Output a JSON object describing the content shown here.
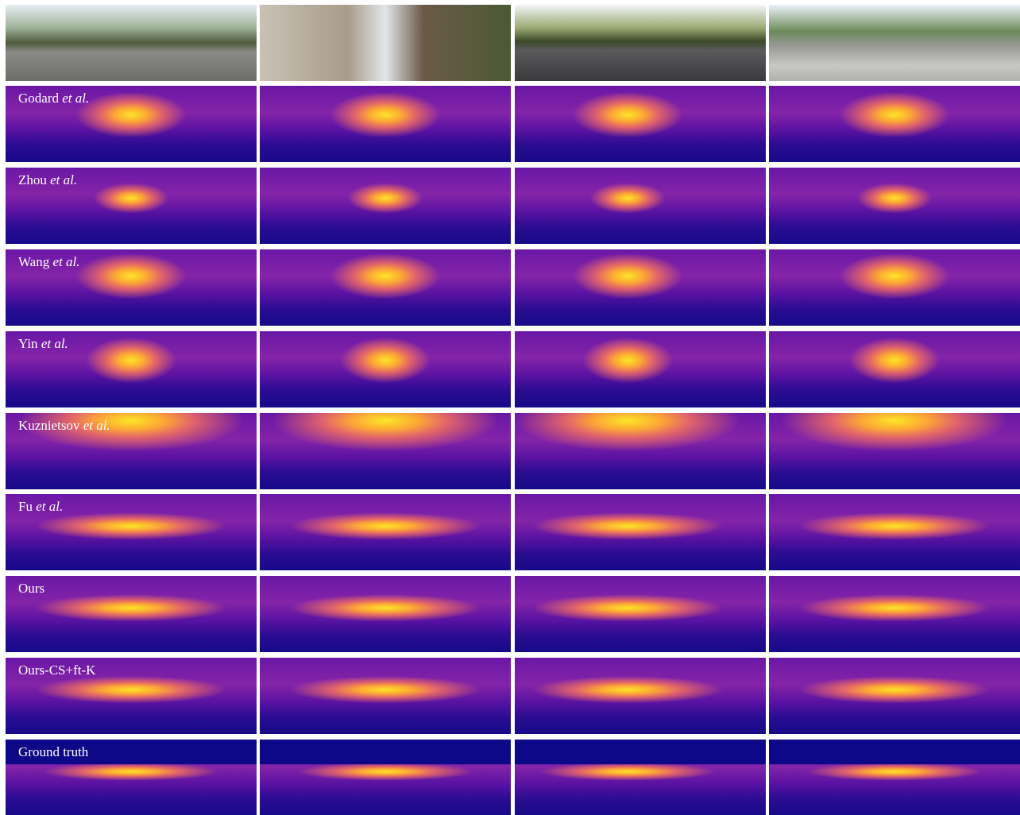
{
  "rows": [
    {
      "label": "Godard",
      "suffix": "et al."
    },
    {
      "label": "Zhou",
      "suffix": "et al."
    },
    {
      "label": "Wang",
      "suffix": "et al."
    },
    {
      "label": "Yin",
      "suffix": "et al."
    },
    {
      "label": "Kuznietsov",
      "suffix": "et al."
    },
    {
      "label": "Fu",
      "suffix": "et al."
    },
    {
      "label": "Ours"
    },
    {
      "label": "Ours-CS+ft-K"
    },
    {
      "label": "Ground truth"
    }
  ]
}
